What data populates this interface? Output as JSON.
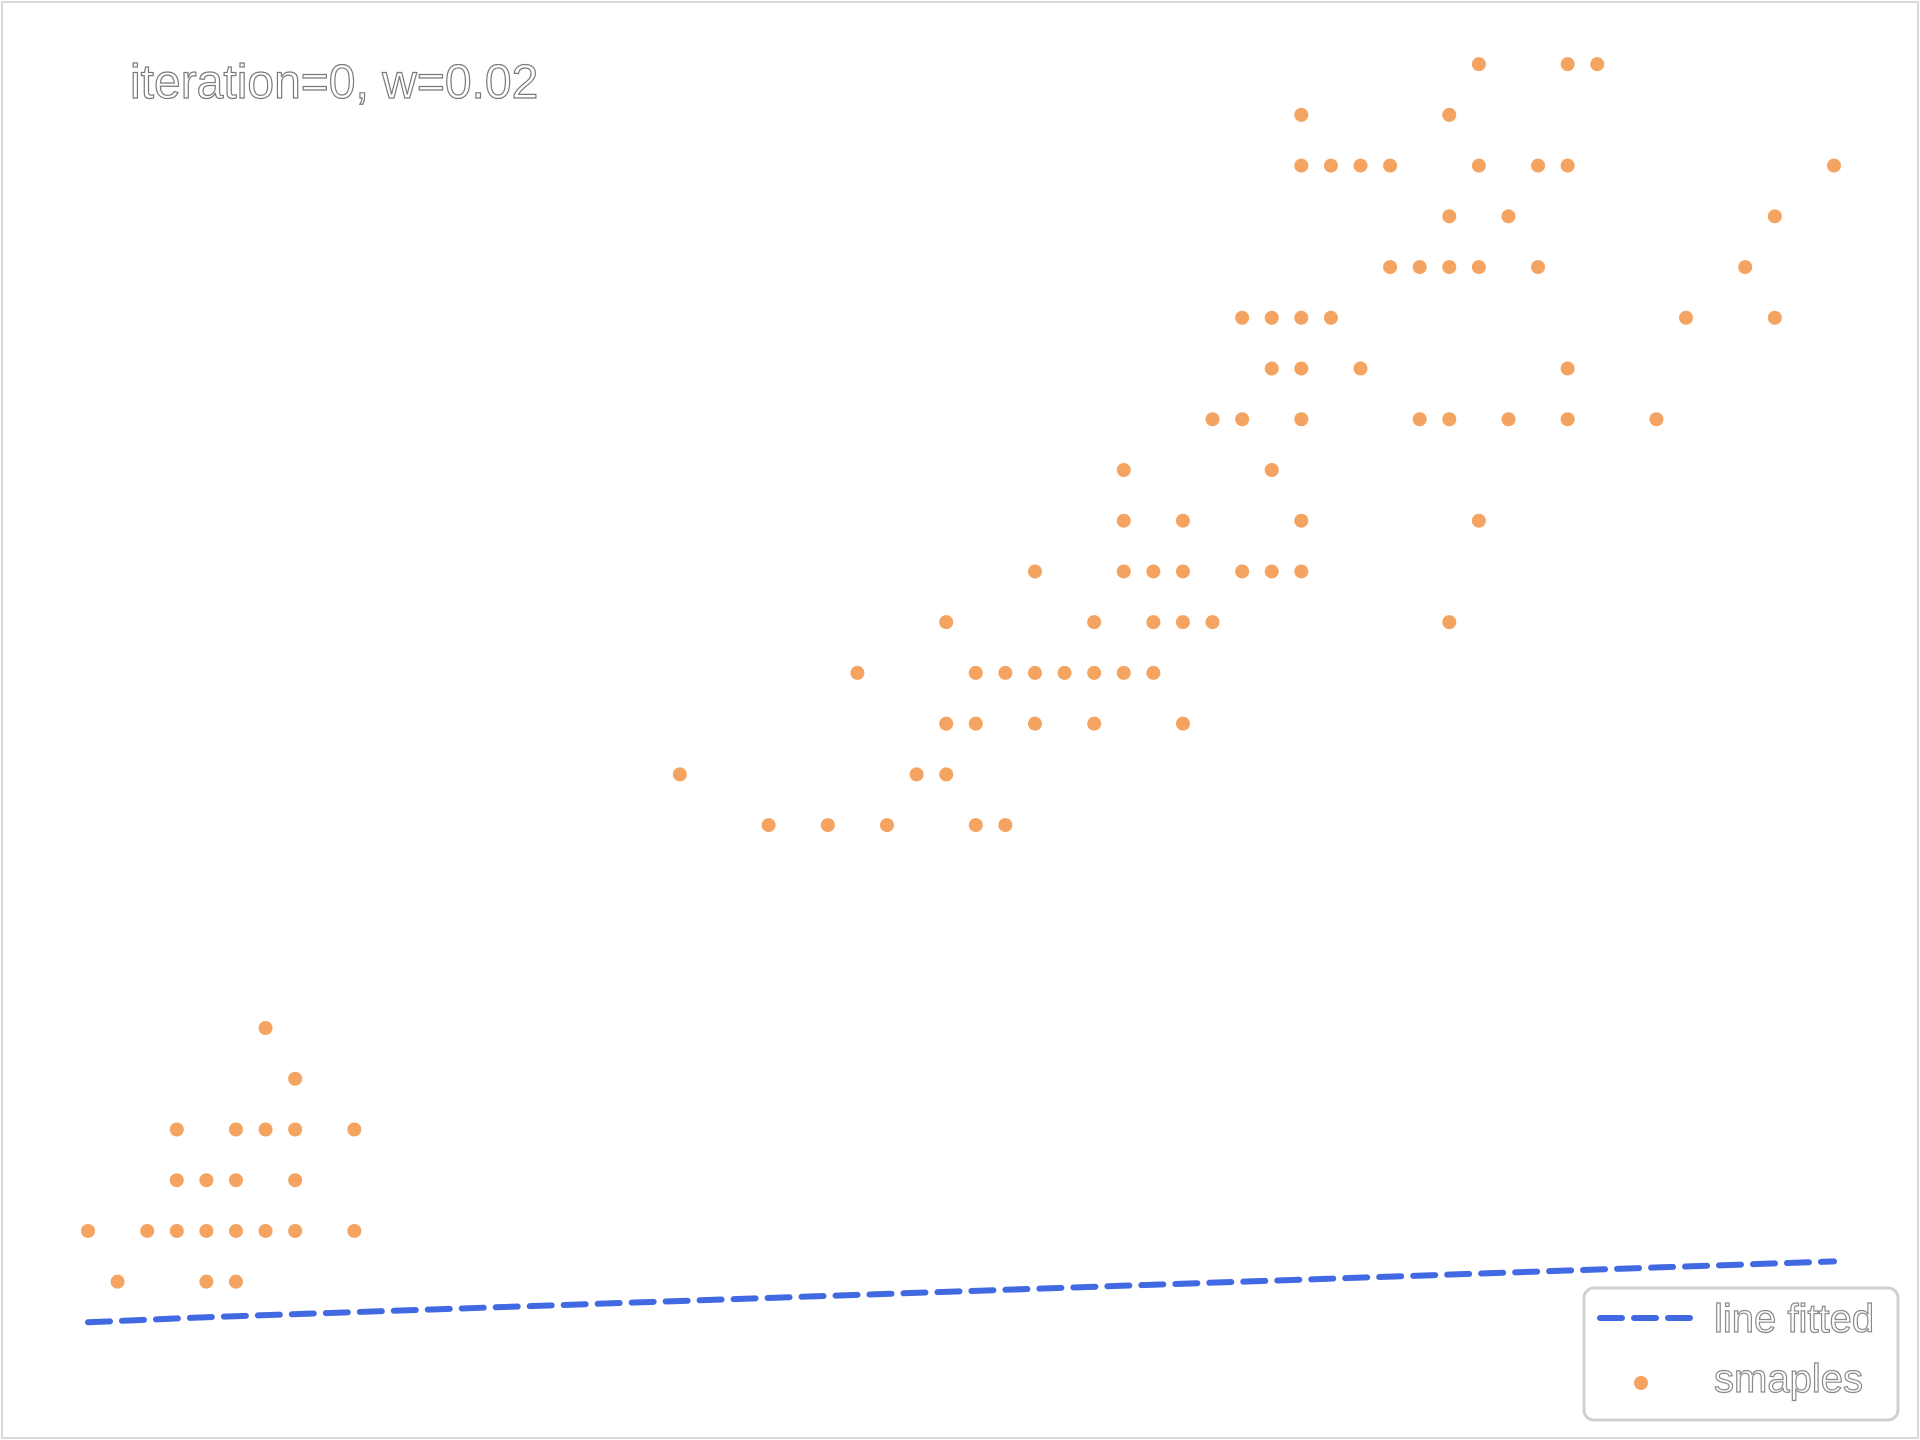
{
  "chart_data": {
    "type": "scatter",
    "title": "iteration=0, w=0.02",
    "xlabel": "",
    "ylabel": "",
    "xlim": [
      0,
      60
    ],
    "ylim": [
      -1,
      25
    ],
    "grid": false,
    "legend": {
      "position": "bottom-right",
      "entries": [
        {
          "label": "line fitted",
          "style": "dashed-line"
        },
        {
          "label": "smaples",
          "style": "marker"
        }
      ]
    },
    "colors": {
      "line": "#4169e1",
      "points": "#f4a460",
      "frame": "#d9d9d9"
    },
    "fitted_line": {
      "name": "line fitted",
      "x": [
        1,
        5,
        60
      ],
      "y": [
        0.0,
        0.1,
        1.2
      ]
    },
    "series": [
      {
        "name": "smaples",
        "points": [
          [
            1,
            1.8
          ],
          [
            2,
            0.8
          ],
          [
            3,
            1.8
          ],
          [
            4,
            1.8
          ],
          [
            5,
            1.8
          ],
          [
            6,
            1.8
          ],
          [
            7,
            1.8
          ],
          [
            8,
            1.8
          ],
          [
            10,
            1.8
          ],
          [
            5,
            0.8
          ],
          [
            6,
            0.8
          ],
          [
            4,
            2.8
          ],
          [
            5,
            2.8
          ],
          [
            6,
            2.8
          ],
          [
            8,
            2.8
          ],
          [
            4,
            3.8
          ],
          [
            6,
            3.8
          ],
          [
            7,
            3.8
          ],
          [
            8,
            3.8
          ],
          [
            10,
            3.8
          ],
          [
            8,
            4.8
          ],
          [
            7,
            5.8
          ],
          [
            21,
            10.8
          ],
          [
            24,
            9.8
          ],
          [
            26,
            9.8
          ],
          [
            28,
            9.8
          ],
          [
            31,
            9.8
          ],
          [
            32,
            9.8
          ],
          [
            29,
            10.8
          ],
          [
            30,
            10.8
          ],
          [
            30,
            11.8
          ],
          [
            31,
            11.8
          ],
          [
            33,
            11.8
          ],
          [
            35,
            11.8
          ],
          [
            38,
            11.8
          ],
          [
            27,
            12.8
          ],
          [
            31,
            12.8
          ],
          [
            32,
            12.8
          ],
          [
            33,
            12.8
          ],
          [
            34,
            12.8
          ],
          [
            35,
            12.8
          ],
          [
            36,
            12.8
          ],
          [
            37,
            12.8
          ],
          [
            30,
            13.8
          ],
          [
            35,
            13.8
          ],
          [
            37,
            13.8
          ],
          [
            38,
            13.8
          ],
          [
            39,
            13.8
          ],
          [
            47,
            13.8
          ],
          [
            33,
            14.8
          ],
          [
            36,
            14.8
          ],
          [
            37,
            14.8
          ],
          [
            38,
            14.8
          ],
          [
            40,
            14.8
          ],
          [
            41,
            14.8
          ],
          [
            42,
            14.8
          ],
          [
            36,
            15.8
          ],
          [
            38,
            15.8
          ],
          [
            42,
            15.8
          ],
          [
            48,
            15.8
          ],
          [
            36,
            16.8
          ],
          [
            41,
            16.8
          ],
          [
            39,
            17.8
          ],
          [
            40,
            17.8
          ],
          [
            42,
            17.8
          ],
          [
            46,
            17.8
          ],
          [
            47,
            17.8
          ],
          [
            49,
            17.8
          ],
          [
            51,
            17.8
          ],
          [
            54,
            17.8
          ],
          [
            41,
            18.8
          ],
          [
            42,
            18.8
          ],
          [
            44,
            18.8
          ],
          [
            51,
            18.8
          ],
          [
            40,
            19.8
          ],
          [
            41,
            19.8
          ],
          [
            42,
            19.8
          ],
          [
            43,
            19.8
          ],
          [
            55,
            19.8
          ],
          [
            58,
            19.8
          ],
          [
            45,
            20.8
          ],
          [
            46,
            20.8
          ],
          [
            47,
            20.8
          ],
          [
            48,
            20.8
          ],
          [
            50,
            20.8
          ],
          [
            57,
            20.8
          ],
          [
            47,
            21.8
          ],
          [
            49,
            21.8
          ],
          [
            58,
            21.8
          ],
          [
            42,
            22.8
          ],
          [
            43,
            22.8
          ],
          [
            44,
            22.8
          ],
          [
            45,
            22.8
          ],
          [
            48,
            22.8
          ],
          [
            50,
            22.8
          ],
          [
            51,
            22.8
          ],
          [
            60,
            22.8
          ],
          [
            42,
            23.8
          ],
          [
            47,
            23.8
          ],
          [
            48,
            24.8
          ],
          [
            51,
            24.8
          ],
          [
            52,
            24.8
          ]
        ]
      }
    ]
  }
}
